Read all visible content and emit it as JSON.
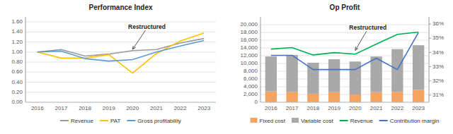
{
  "chart_data": [
    {
      "type": "line",
      "title": "Performance Index",
      "categories": [
        "2016",
        "2017",
        "2018",
        "2019",
        "2020",
        "2021",
        "2022",
        "2023"
      ],
      "series": [
        {
          "name": "Revenue",
          "color": "#999999",
          "values": [
            1.0,
            1.05,
            0.92,
            0.96,
            1.03,
            1.05,
            1.18,
            1.27
          ]
        },
        {
          "name": "PAT",
          "color": "#FFC000",
          "values": [
            1.0,
            0.88,
            0.88,
            0.95,
            0.58,
            0.97,
            1.22,
            1.38
          ]
        },
        {
          "name": "Gross profitability",
          "color": "#5B9BD5",
          "values": [
            1.0,
            1.02,
            0.87,
            0.82,
            0.85,
            1.0,
            1.12,
            1.23
          ]
        }
      ],
      "ylim": [
        0.0,
        1.7
      ],
      "yticks": [
        {
          "value": 0.0,
          "label": "0.00"
        },
        {
          "value": 0.2,
          "label": "0.20"
        },
        {
          "value": 0.4,
          "label": "0.40"
        },
        {
          "value": 0.6,
          "label": "0.60"
        },
        {
          "value": 0.8,
          "label": "0.80"
        },
        {
          "value": 1.0,
          "label": "1.00"
        },
        {
          "value": 1.2,
          "label": "1.20"
        },
        {
          "value": 1.4,
          "label": "1.40"
        },
        {
          "value": 1.6,
          "label": "1.60"
        }
      ],
      "grid": true,
      "legend": "bottom",
      "annotations": [
        {
          "text": "Restructured",
          "x": "2020",
          "y": 1.04
        }
      ]
    },
    {
      "type": "bar",
      "title": "Op Profit",
      "stacked": true,
      "categories": [
        "2016",
        "2017",
        "2018",
        "2019",
        "2020",
        "2021",
        "2022",
        "2023"
      ],
      "series": [
        {
          "name": "Fixed cost",
          "color": "#F4A460",
          "values": [
            2800,
            2700,
            2200,
            2600,
            2000,
            2600,
            2700,
            3200
          ]
        },
        {
          "name": "Variable cost",
          "color": "#A9A9A9",
          "values": [
            9000,
            9500,
            8000,
            8500,
            8500,
            9200,
            11000,
            11500
          ]
        },
        {
          "name": "Revenue",
          "type": "line",
          "color": "#00B050",
          "values": [
            13700,
            14100,
            12200,
            12800,
            12400,
            15000,
            17500,
            18100
          ]
        },
        {
          "name": "Contribution margin",
          "type": "line",
          "axis": "y2",
          "color": "#4472C4",
          "values": [
            33.8,
            33.8,
            32.8,
            32.8,
            32.8,
            33.6,
            32.8,
            35.4
          ]
        }
      ],
      "ylim": [
        0,
        22000
      ],
      "yticks": [
        0,
        {
          "value": 2000,
          "label": "2,000"
        },
        {
          "value": 4000,
          "label": "4,000"
        },
        {
          "value": 6000,
          "label": "6,000"
        },
        {
          "value": 8000,
          "label": "8,000"
        },
        {
          "value": 10000,
          "label": "10,000"
        },
        {
          "value": 12000,
          "label": "12,000"
        },
        {
          "value": 14000,
          "label": "14,000"
        },
        {
          "value": 16000,
          "label": "16,000"
        },
        {
          "value": 18000,
          "label": "18,000"
        },
        {
          "value": 20000,
          "label": "20,000"
        }
      ],
      "y2lim": [
        30.5,
        36.5
      ],
      "y2ticks": [
        {
          "value": 31,
          "label": "31%"
        },
        {
          "value": 32,
          "label": "32%"
        },
        {
          "value": 33,
          "label": "33%"
        },
        {
          "value": 34,
          "label": "34%"
        },
        {
          "value": 35,
          "label": "35%"
        },
        {
          "value": 36,
          "label": "36%"
        }
      ],
      "grid": true,
      "legend": "bottom",
      "annotations": [
        {
          "text": "Restructured",
          "x": "2020",
          "y": 13200
        }
      ]
    }
  ]
}
